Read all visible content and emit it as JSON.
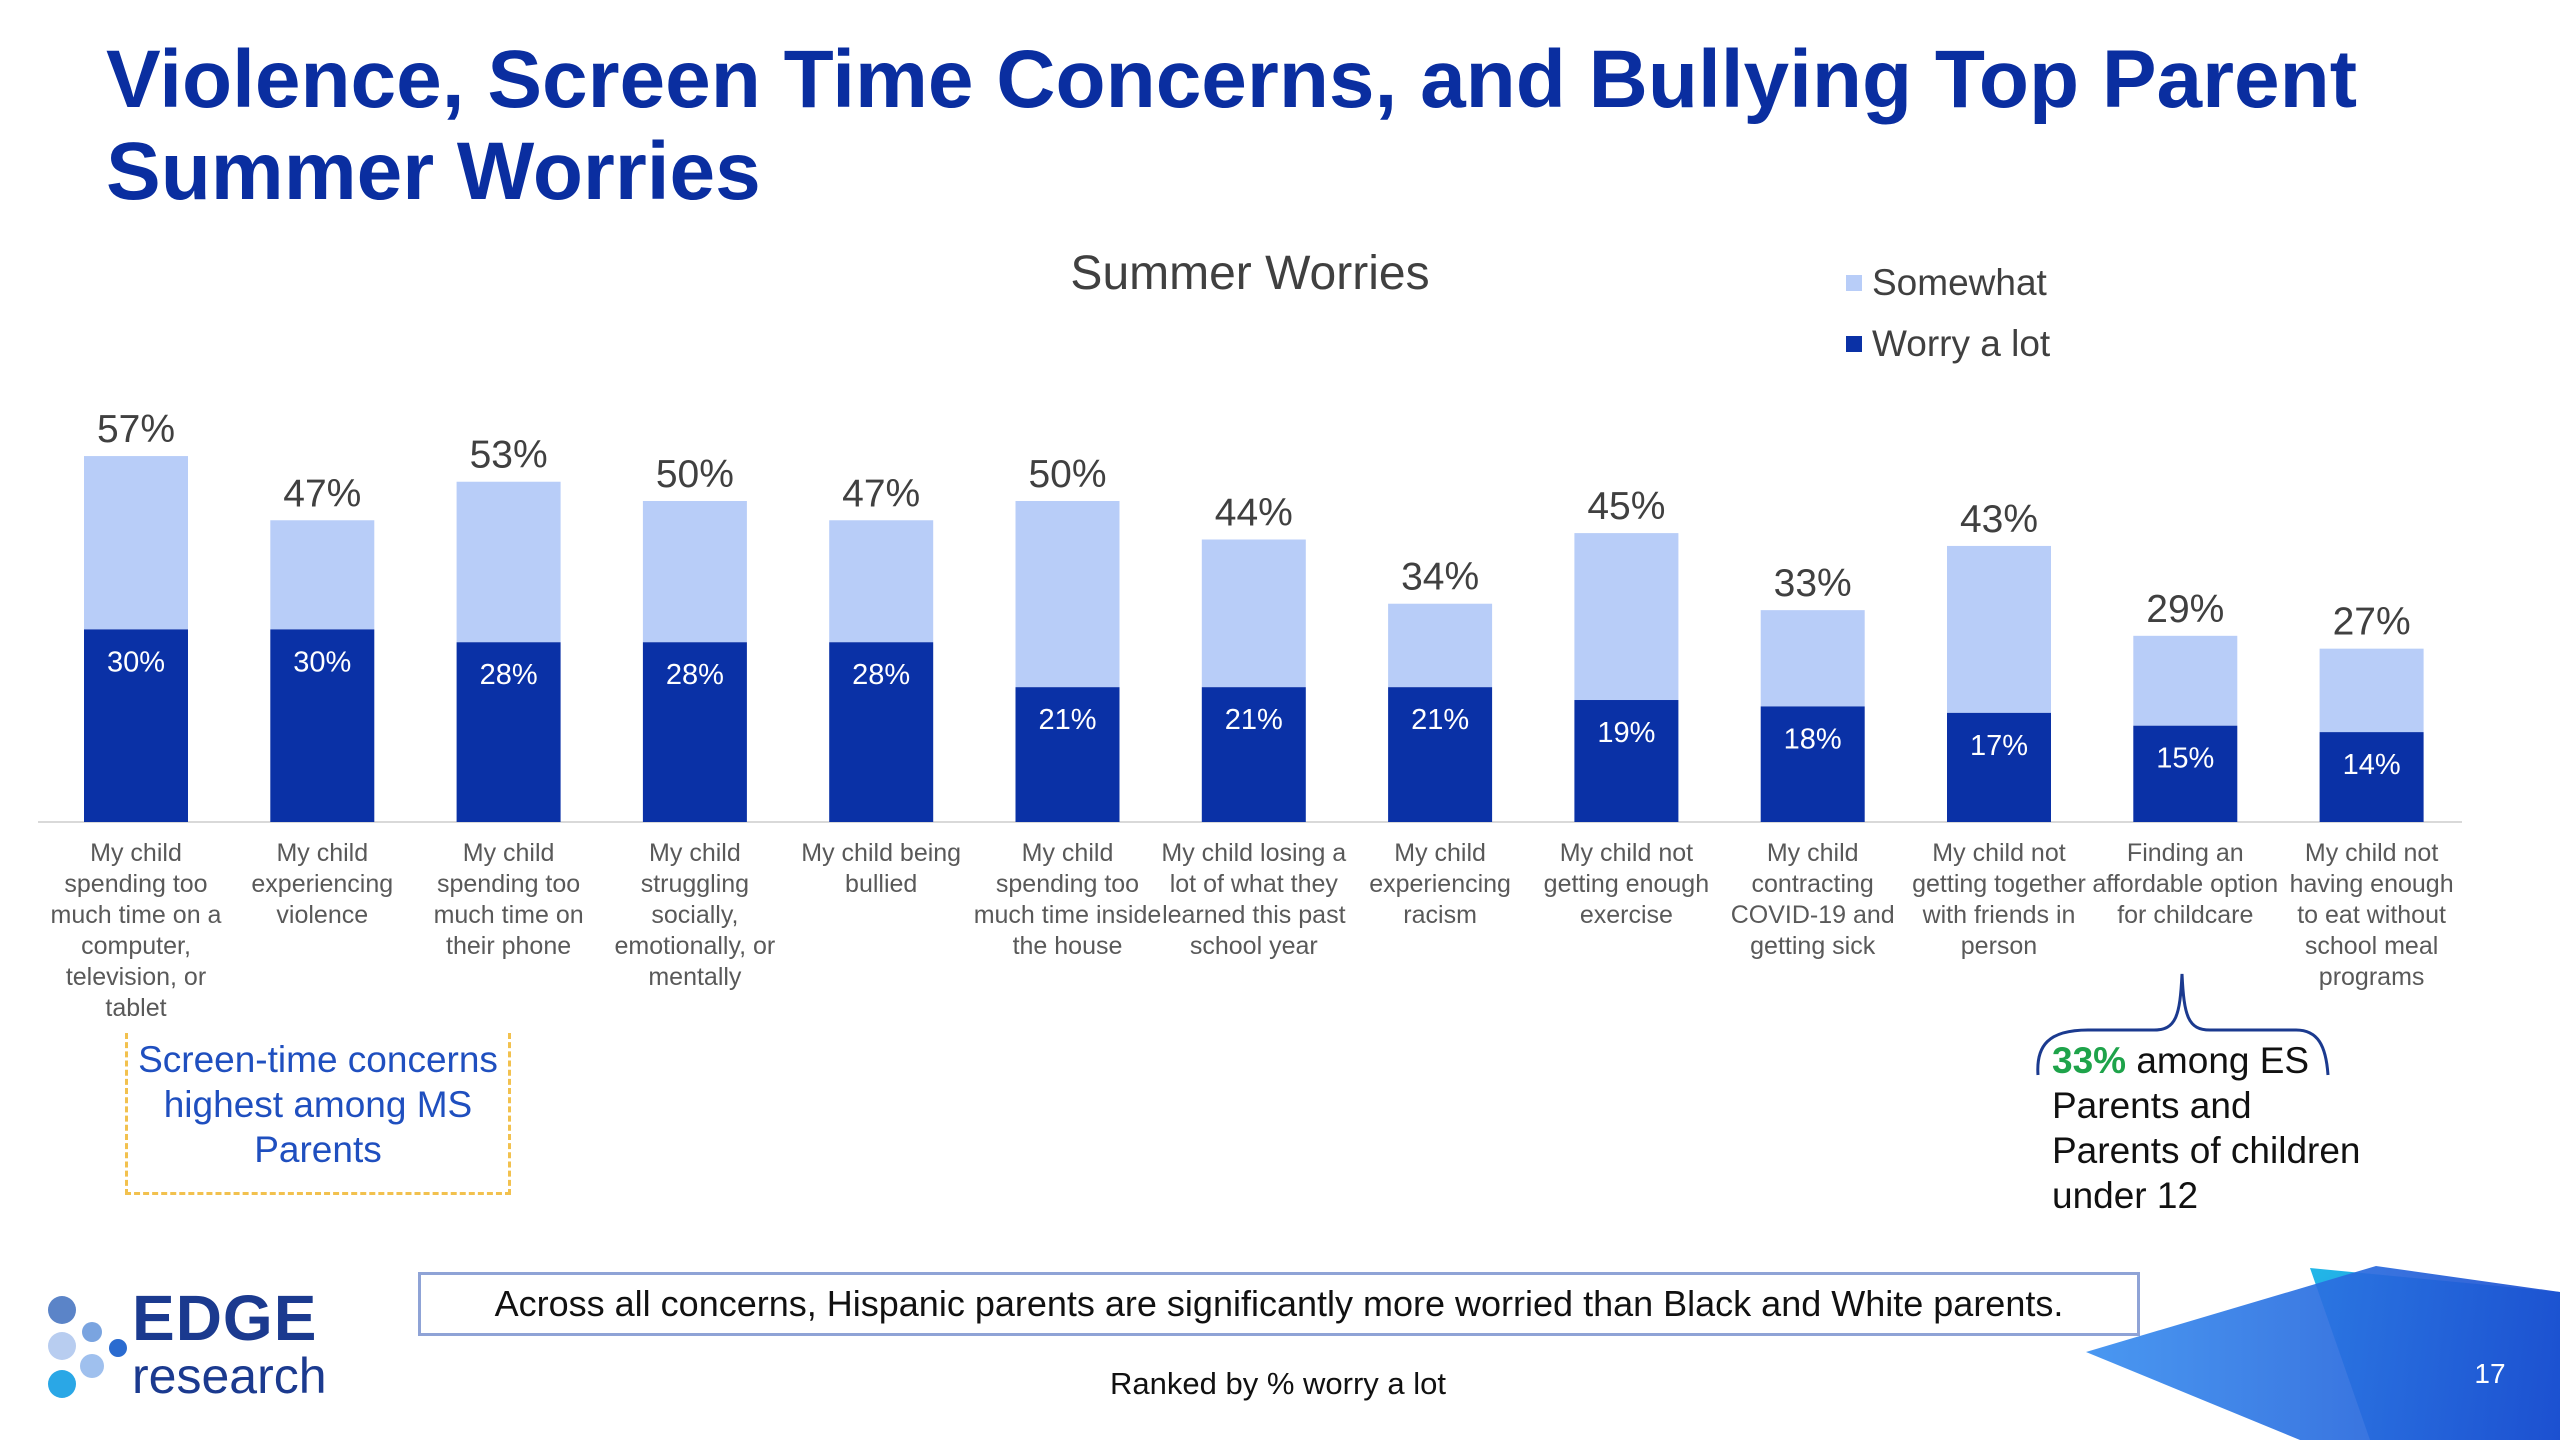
{
  "slide": {
    "title": "Violence, Screen Time Concerns, and Bullying Top Parent Summer Worries",
    "page_number": "17",
    "footnote": "Ranked by % worry a lot",
    "bottom_note": "Across all concerns, Hispanic parents are significantly more worried than Black and White parents.",
    "left_note": "Screen-time concerns highest among MS Parents",
    "right_note": {
      "highlight": "33%",
      "text": " among ES Parents and Parents of children under 12"
    },
    "logo": {
      "line1": "EDGE",
      "line2": "research"
    }
  },
  "colors": {
    "title": "#0a2ea0",
    "somewhat": "#b8cdf8",
    "worry_a_lot": "#0a31a6",
    "highlight_green": "#1ea34a",
    "note_border": "#f2c14e",
    "box_border": "#8fa3d6"
  },
  "chart_data": {
    "type": "bar",
    "stacked": true,
    "title": "Summer Worries",
    "legend_position": "top-right",
    "categories": [
      "My child spending too much time on a computer, television, or tablet",
      "My child experiencing violence",
      "My child spending too much time on their phone",
      "My child struggling socially, emotionally, or mentally",
      "My child being bullied",
      "My child spending too much time inside the house",
      "My child losing a lot of what they learned this past school year",
      "My child experiencing racism",
      "My child not getting enough exercise",
      "My child contracting COVID-19 and getting sick",
      "My child not getting together with friends in person",
      "Finding an affordable option for childcare",
      "My child not having enough to eat without school meal programs"
    ],
    "series": [
      {
        "name": "Worry a lot",
        "values": [
          30,
          30,
          28,
          28,
          28,
          21,
          21,
          21,
          19,
          18,
          17,
          15,
          14
        ]
      },
      {
        "name": "Somewhat",
        "values": [
          27,
          17,
          25,
          22,
          19,
          29,
          23,
          13,
          26,
          15,
          26,
          14,
          13
        ]
      }
    ],
    "totals": [
      57,
      47,
      53,
      50,
      47,
      50,
      44,
      34,
      45,
      33,
      43,
      29,
      27
    ],
    "value_suffix": "%",
    "legend": [
      "Somewhat",
      "Worry a lot"
    ],
    "ylim": [
      0,
      60
    ],
    "grid": false
  }
}
